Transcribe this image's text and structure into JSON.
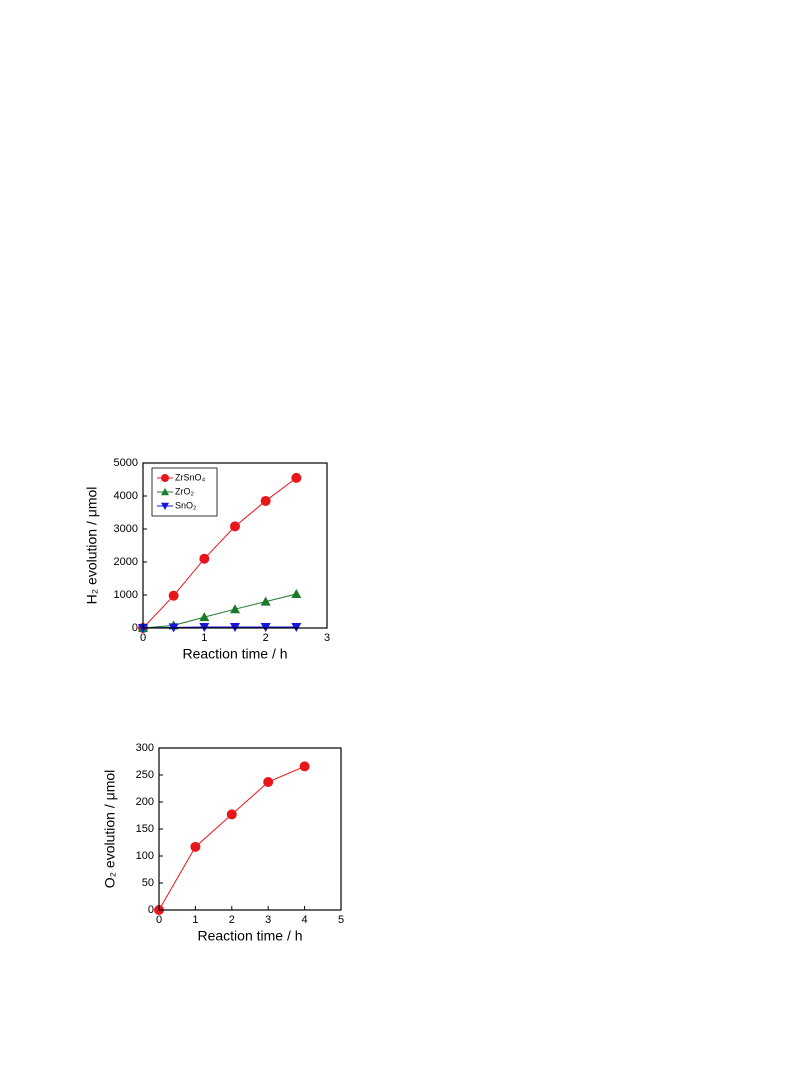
{
  "chart_data": [
    {
      "type": "line",
      "x": [
        0,
        0.5,
        1,
        1.5,
        2,
        2.5
      ],
      "series": [
        {
          "name": "ZrSnO₄",
          "color": "#e8161b",
          "marker": "circle",
          "values": [
            0,
            980,
            2100,
            3080,
            3850,
            4550
          ]
        },
        {
          "name": "ZrO₂",
          "color": "#1a7a2a",
          "marker": "triangle-up",
          "values": [
            0,
            80,
            330,
            570,
            800,
            1030
          ]
        },
        {
          "name": "SnO₂",
          "color": "#1515e0",
          "marker": "triangle-down",
          "values": [
            0,
            20,
            30,
            30,
            30,
            30
          ]
        }
      ],
      "xlabel": "Reaction time / h",
      "ylabel": "H₂ evolution / μmol",
      "xlim": [
        0,
        3
      ],
      "xticks": [
        0,
        1,
        2,
        3
      ],
      "ylim": [
        0,
        5000
      ],
      "yticks": [
        0,
        1000,
        2000,
        3000,
        4000,
        5000
      ],
      "legend": "upper left"
    },
    {
      "type": "line",
      "x": [
        0,
        1,
        2,
        3,
        4
      ],
      "values": [
        0,
        117,
        177,
        237,
        266
      ],
      "color": "#e8161b",
      "marker": "circle",
      "xlabel": "Reaction time / h",
      "ylabel": "O₂ evolution / μmol",
      "xlim": [
        0,
        5
      ],
      "xticks": [
        0,
        1,
        2,
        3,
        4,
        5
      ],
      "ylim": [
        0,
        300
      ],
      "yticks": [
        0,
        50,
        100,
        150,
        200,
        250,
        300
      ]
    }
  ]
}
